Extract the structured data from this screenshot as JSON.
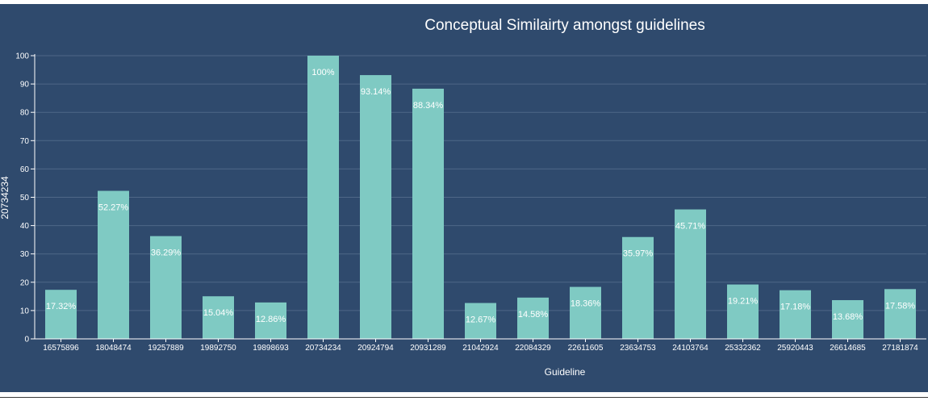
{
  "colors": {
    "background": "#2f4a6d",
    "bar": "#7fcac3",
    "grid": "#4f6787",
    "axis": "#ffffff",
    "text": "#ffffff"
  },
  "chart_data": {
    "type": "bar",
    "title": "Conceptual Similairty amongst guidelines",
    "xlabel": "Guideline",
    "ylabel": "20734234",
    "ylim": [
      0,
      100
    ],
    "yticks": [
      0,
      10,
      20,
      30,
      40,
      50,
      60,
      70,
      80,
      90,
      100
    ],
    "grid": true,
    "categories": [
      "16575896",
      "18048474",
      "19257889",
      "19892750",
      "19898693",
      "20734234",
      "20924794",
      "20931289",
      "21042924",
      "22084329",
      "22611605",
      "23634753",
      "24103764",
      "25332362",
      "25920443",
      "26614685",
      "27181874"
    ],
    "values": [
      17.32,
      52.27,
      36.29,
      15.04,
      12.86,
      100,
      93.14,
      88.34,
      12.67,
      14.58,
      18.36,
      35.97,
      45.71,
      19.21,
      17.18,
      13.68,
      17.58
    ],
    "data_labels": [
      "17.32%",
      "52.27%",
      "36.29%",
      "15.04%",
      "12.86%",
      "100%",
      "93.14%",
      "88.34%",
      "12.67%",
      "14.58%",
      "18.36%",
      "35.97%",
      "45.71%",
      "19.21%",
      "17.18%",
      "13.68%",
      "17.58%"
    ]
  }
}
